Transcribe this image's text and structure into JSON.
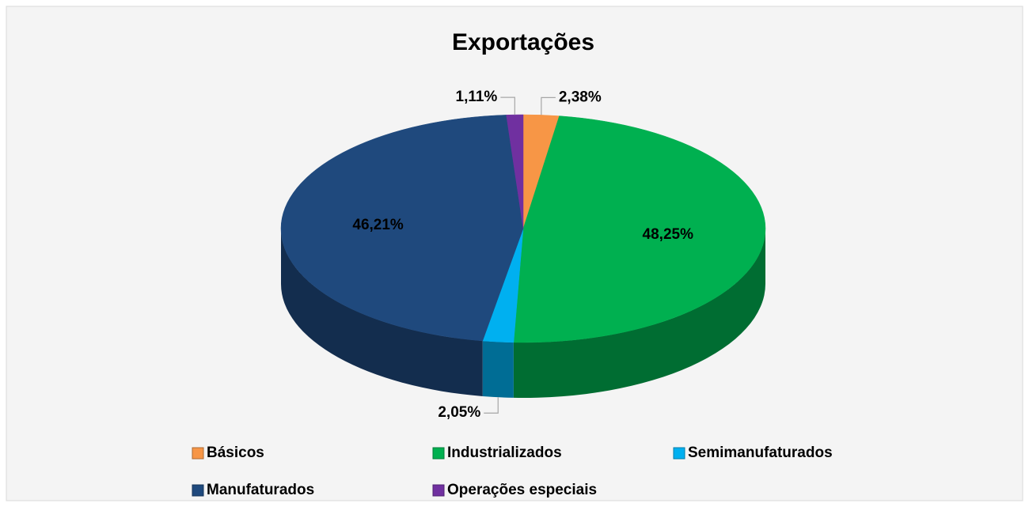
{
  "chart_data": {
    "type": "pie3d",
    "title": "Exportações",
    "categories": [
      "Básicos",
      "Industrializados",
      "Semimanufaturados",
      "Manufaturados",
      "Operações especiais"
    ],
    "values": [
      2.38,
      48.25,
      2.05,
      46.21,
      1.11
    ],
    "value_labels": [
      "2,38%",
      "48,25%",
      "2,05%",
      "46,21%",
      "1,11%"
    ],
    "colors": [
      "#f79646",
      "#00b050",
      "#00b0f0",
      "#1f497d",
      "#7030a0"
    ],
    "legend": "bottom"
  }
}
